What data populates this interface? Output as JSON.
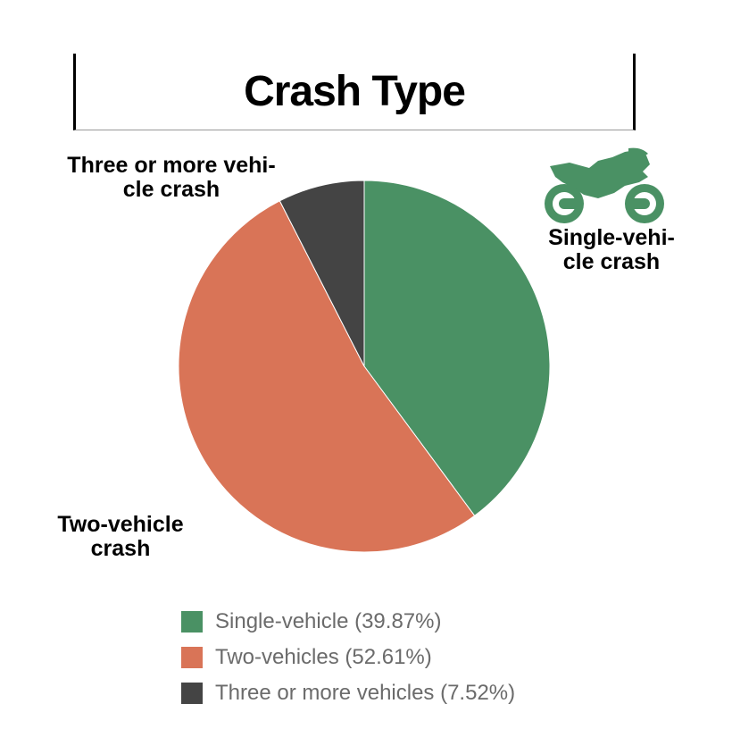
{
  "chart_data": {
    "type": "pie",
    "title": "Crash Type",
    "slices": [
      {
        "label": "Single-vehicle-crash",
        "callout": "Single-vehi- cle crash",
        "legend": "Single-vehicle (39.87%)",
        "value": 39.87,
        "color": "#4a9164"
      },
      {
        "label": "Two-vehicle crash",
        "callout": "Two-vehicle crash",
        "legend": "Two-vehicles (52.61%)",
        "value": 52.61,
        "color": "#d97457"
      },
      {
        "label": "Three or more vehicle crash",
        "callout": "Three or more vehi- cle crash",
        "legend": "Three or more vehicles (7.52%)",
        "value": 7.52,
        "color": "#444444"
      }
    ],
    "legend_position": "bottom"
  },
  "labels": {
    "single_line1": "Single-vehi-",
    "single_line2": "cle crash",
    "two_line1": "Two-vehicle",
    "two_line2": "crash",
    "three_line1": "Three or more vehi-",
    "three_line2": "cle crash"
  },
  "icon": {
    "name": "motorcycle-icon",
    "color": "#4a9164"
  }
}
